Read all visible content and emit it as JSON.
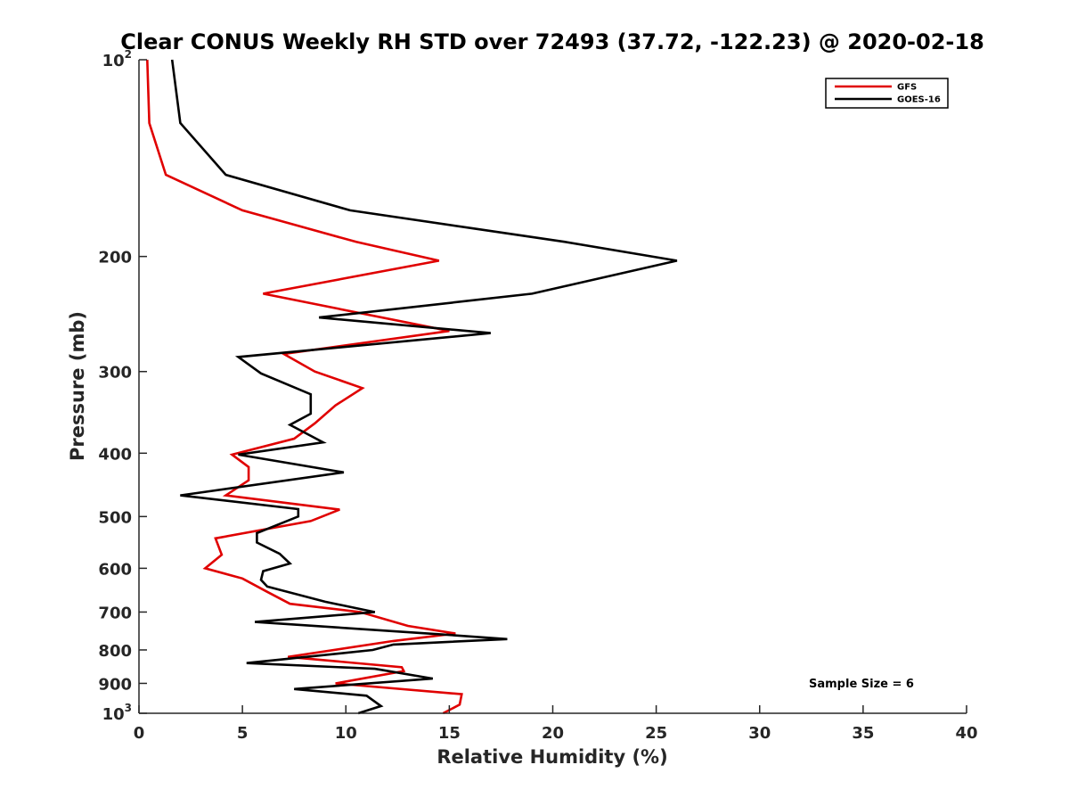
{
  "chart_data": {
    "type": "line",
    "title": "Clear CONUS Weekly RH STD over 72493 (37.72, -122.23) @ 2020-02-18",
    "xlabel": "Relative Humidity (%)",
    "ylabel": "Pressure (mb)",
    "xlim": [
      0,
      40
    ],
    "ylim": [
      100,
      1000
    ],
    "yscale": "log",
    "y_reversed": true,
    "x_ticks": [
      "0",
      "5",
      "10",
      "15",
      "20",
      "25",
      "30",
      "35",
      "40"
    ],
    "y_ticks": [
      {
        "value": 100,
        "base": "10",
        "exp": "2"
      },
      {
        "value": 200,
        "label": "200"
      },
      {
        "value": 300,
        "label": "300"
      },
      {
        "value": 400,
        "label": "400"
      },
      {
        "value": 500,
        "label": "500"
      },
      {
        "value": 600,
        "label": "600"
      },
      {
        "value": 700,
        "label": "700"
      },
      {
        "value": 800,
        "label": "800"
      },
      {
        "value": 900,
        "label": "900"
      },
      {
        "value": 1000,
        "base": "10",
        "exp": "3"
      }
    ],
    "grid": false,
    "legend_position": "top-right",
    "annotation": "Sample Size = 6",
    "series": [
      {
        "name": "GFS",
        "color": "#e00000",
        "points": [
          [
            0.4,
            100
          ],
          [
            0.5,
            125
          ],
          [
            1.3,
            150
          ],
          [
            5.0,
            170
          ],
          [
            10.5,
            190
          ],
          [
            14.5,
            203
          ],
          [
            6.0,
            228
          ],
          [
            15.0,
            260
          ],
          [
            7.0,
            282
          ],
          [
            8.5,
            300
          ],
          [
            10.8,
            318
          ],
          [
            9.5,
            338
          ],
          [
            8.5,
            360
          ],
          [
            7.5,
            380
          ],
          [
            4.5,
            402
          ],
          [
            5.3,
            420
          ],
          [
            5.3,
            440
          ],
          [
            4.2,
            464
          ],
          [
            9.7,
            488
          ],
          [
            8.3,
            508
          ],
          [
            3.7,
            540
          ],
          [
            4.0,
            572
          ],
          [
            3.2,
            600
          ],
          [
            5.0,
            622
          ],
          [
            6.2,
            652
          ],
          [
            7.3,
            680
          ],
          [
            10.7,
            700
          ],
          [
            13.0,
            735
          ],
          [
            15.3,
            755
          ],
          [
            12.3,
            775
          ],
          [
            7.2,
            820
          ],
          [
            12.7,
            850
          ],
          [
            12.8,
            862
          ],
          [
            9.5,
            900
          ],
          [
            15.6,
            935
          ],
          [
            15.5,
            970
          ],
          [
            14.7,
            1000
          ]
        ]
      },
      {
        "name": "GOES-16",
        "color": "#000000",
        "points": [
          [
            1.6,
            100
          ],
          [
            2.0,
            125
          ],
          [
            4.2,
            150
          ],
          [
            10.2,
            170
          ],
          [
            20.6,
            190
          ],
          [
            26.0,
            203
          ],
          [
            19.0,
            228
          ],
          [
            8.7,
            248
          ],
          [
            17.0,
            262
          ],
          [
            4.8,
            285
          ],
          [
            5.9,
            302
          ],
          [
            8.3,
            325
          ],
          [
            8.3,
            348
          ],
          [
            7.3,
            362
          ],
          [
            8.9,
            385
          ],
          [
            4.8,
            402
          ],
          [
            9.9,
            428
          ],
          [
            2.0,
            464
          ],
          [
            7.7,
            487
          ],
          [
            7.7,
            500
          ],
          [
            5.7,
            530
          ],
          [
            5.7,
            548
          ],
          [
            6.8,
            570
          ],
          [
            7.3,
            590
          ],
          [
            6.0,
            606
          ],
          [
            5.9,
            625
          ],
          [
            6.2,
            640
          ],
          [
            9.0,
            675
          ],
          [
            11.4,
            700
          ],
          [
            5.6,
            725
          ],
          [
            14.8,
            758
          ],
          [
            17.8,
            770
          ],
          [
            12.3,
            785
          ],
          [
            11.3,
            800
          ],
          [
            5.2,
            838
          ],
          [
            11.4,
            855
          ],
          [
            14.2,
            885
          ],
          [
            7.5,
            918
          ],
          [
            11.0,
            940
          ],
          [
            11.7,
            975
          ],
          [
            10.6,
            1000
          ]
        ]
      }
    ]
  }
}
